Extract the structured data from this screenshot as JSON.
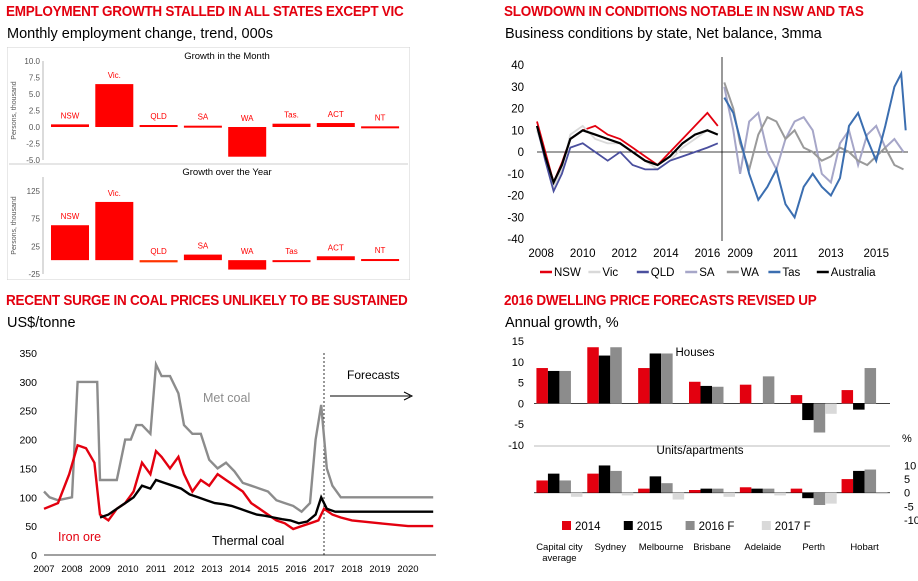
{
  "panels": {
    "p1": {
      "title": "EMPLOYMENT GROWTH STALLED IN ALL STATES EXCEPT VIC",
      "subtitle": "Monthly employment change, trend, 000s"
    },
    "p2": {
      "title": "SLOWDOWN IN CONDITIONS NOTABLE IN NSW AND TAS",
      "subtitle": "Business conditions by state, Net balance, 3mma"
    },
    "p3": {
      "title": "RECENT SURGE IN COAL PRICES UNLIKELY TO BE SUSTAINED",
      "subtitle": "US$/tonne"
    },
    "p4": {
      "title": "2016 DWELLING PRICE FORECASTS REVISED UP",
      "subtitle": "Annual growth, %"
    }
  },
  "chart_data": [
    {
      "id": "employment",
      "type": "bar",
      "color": "#ff0000",
      "categories": [
        "NSW",
        "Vic.",
        "QLD",
        "SA",
        "WA",
        "Tas.",
        "ACT",
        "NT"
      ],
      "month": {
        "title": "Growth in the Month",
        "ylabel": "Persons, thousand",
        "ylim": [
          -5,
          10
        ],
        "yticks": [
          10.0,
          7.5,
          5.0,
          2.5,
          0.0,
          -2.5,
          -5.0
        ],
        "values": [
          0.4,
          6.5,
          0.3,
          0.2,
          -4.5,
          0.5,
          0.6,
          0.1
        ]
      },
      "year": {
        "title": "Growth over the Year",
        "ylabel": "Persons, thousand",
        "ylim": [
          -25,
          150
        ],
        "yticks": [
          125,
          75,
          25,
          -25
        ],
        "categories": [
          "NSW",
          "Vic.",
          "QLD",
          "SA",
          "WA",
          "Tas",
          "ACT",
          "NT"
        ],
        "values": [
          63,
          105,
          -4,
          10,
          -17,
          -3,
          7,
          2
        ]
      }
    },
    {
      "id": "business_conditions",
      "type": "line",
      "ylim": [
        -40,
        40
      ],
      "yticks": [
        40,
        30,
        20,
        10,
        0,
        -10,
        -20,
        -30,
        -40
      ],
      "left_xticks": [
        "2008",
        "2010",
        "2012",
        "2014",
        "2016"
      ],
      "right_xticks": [
        "2009",
        "2011",
        "2013",
        "2015"
      ],
      "legend": [
        {
          "name": "NSW",
          "color": "#e3000f"
        },
        {
          "name": "Vic",
          "color": "#d9d9d9"
        },
        {
          "name": "QLD",
          "color": "#4a4f9e"
        },
        {
          "name": "SA",
          "color": "#a6a6c8"
        },
        {
          "name": "WA",
          "color": "#9a9a9a"
        },
        {
          "name": "Tas",
          "color": "#3b6eb0"
        },
        {
          "name": "Australia",
          "color": "#000000"
        }
      ],
      "left_series": [
        {
          "name": "NSW",
          "x": [
            2007.8,
            2008.2,
            2008.6,
            2009.0,
            2009.4,
            2010.0,
            2010.6,
            2011.2,
            2011.8,
            2012.4,
            2013.0,
            2013.6,
            2014.2,
            2014.8,
            2015.4,
            2016.0,
            2016.5
          ],
          "values": [
            14,
            0,
            -14,
            -5,
            6,
            10,
            12,
            8,
            6,
            2,
            -2,
            -6,
            0,
            6,
            12,
            18,
            12
          ]
        },
        {
          "name": "Vic",
          "x": [
            2007.8,
            2008.2,
            2008.6,
            2009.0,
            2009.4,
            2010.0,
            2010.6,
            2011.2,
            2011.8,
            2012.4,
            2013.0,
            2013.6,
            2014.2,
            2014.8,
            2015.4,
            2016.0,
            2016.5
          ],
          "values": [
            10,
            -2,
            -16,
            -8,
            8,
            12,
            6,
            4,
            4,
            0,
            -4,
            -8,
            -4,
            2,
            6,
            10,
            8
          ]
        },
        {
          "name": "QLD",
          "x": [
            2007.8,
            2008.2,
            2008.6,
            2009.0,
            2009.4,
            2010.0,
            2010.6,
            2011.2,
            2011.8,
            2012.4,
            2013.0,
            2013.6,
            2014.2,
            2014.8,
            2015.4,
            2016.0,
            2016.5
          ],
          "values": [
            12,
            -4,
            -18,
            -10,
            2,
            4,
            0,
            -4,
            0,
            -6,
            -8,
            -8,
            -4,
            -2,
            0,
            2,
            4
          ]
        },
        {
          "name": "Australia",
          "x": [
            2007.8,
            2008.2,
            2008.6,
            2009.0,
            2009.4,
            2010.0,
            2010.6,
            2011.2,
            2011.8,
            2012.4,
            2013.0,
            2013.6,
            2014.2,
            2014.8,
            2015.4,
            2016.0,
            2016.5
          ],
          "values": [
            12,
            -2,
            -14,
            -6,
            6,
            10,
            8,
            6,
            4,
            0,
            -4,
            -6,
            -2,
            4,
            8,
            10,
            8
          ]
        }
      ],
      "right_series": [
        {
          "name": "SA",
          "x": [
            2008.3,
            2008.7,
            2009.0,
            2009.4,
            2009.8,
            2010.2,
            2010.6,
            2011.0,
            2011.4,
            2011.8,
            2012.2,
            2012.6,
            2013.0,
            2013.4,
            2013.8,
            2014.2,
            2014.6,
            2015.0,
            2015.4,
            2015.8,
            2016.2
          ],
          "values": [
            30,
            10,
            -10,
            14,
            18,
            0,
            -8,
            6,
            14,
            16,
            10,
            -10,
            -14,
            4,
            10,
            -6,
            8,
            12,
            2,
            6,
            0
          ]
        },
        {
          "name": "WA",
          "x": [
            2008.3,
            2008.7,
            2009.0,
            2009.4,
            2009.8,
            2010.2,
            2010.6,
            2011.0,
            2011.4,
            2011.8,
            2012.2,
            2012.6,
            2013.0,
            2013.4,
            2013.8,
            2014.2,
            2014.6,
            2015.0,
            2015.4,
            2015.8,
            2016.2
          ],
          "values": [
            32,
            20,
            4,
            -8,
            8,
            16,
            14,
            6,
            10,
            2,
            0,
            -4,
            -2,
            2,
            0,
            -4,
            -6,
            -2,
            2,
            -6,
            -8
          ]
        },
        {
          "name": "Tas",
          "x": [
            2008.3,
            2008.7,
            2009.0,
            2009.4,
            2009.8,
            2010.2,
            2010.6,
            2011.0,
            2011.4,
            2011.8,
            2012.2,
            2012.6,
            2013.0,
            2013.4,
            2013.8,
            2014.2,
            2014.6,
            2015.0,
            2015.4,
            2015.8,
            2016.1,
            2016.3
          ],
          "values": [
            25,
            18,
            6,
            -10,
            -22,
            -16,
            -8,
            -24,
            -30,
            -16,
            -10,
            -16,
            -20,
            -12,
            12,
            18,
            6,
            -4,
            12,
            30,
            36,
            10
          ]
        }
      ]
    },
    {
      "id": "commodity_prices",
      "type": "line",
      "ylim": [
        0,
        350
      ],
      "yticks": [
        350,
        300,
        250,
        200,
        150,
        100,
        50,
        0
      ],
      "xticks": [
        "2007",
        "2008",
        "2009",
        "2010",
        "2011",
        "2012",
        "2013",
        "2014",
        "2015",
        "2016",
        "2017",
        "2018",
        "2019",
        "2020"
      ],
      "forecast_start": 2017,
      "forecast_label": "Forecasts",
      "series": [
        {
          "name": "Met coal",
          "color": "#8c8c8c",
          "x": [
            2007.0,
            2007.2,
            2007.5,
            2008.0,
            2008.2,
            2008.4,
            2008.6,
            2008.9,
            2009.0,
            2009.3,
            2009.6,
            2009.9,
            2010.1,
            2010.3,
            2010.5,
            2010.8,
            2011.0,
            2011.2,
            2011.5,
            2011.8,
            2012.0,
            2012.3,
            2012.6,
            2012.9,
            2013.2,
            2013.5,
            2013.8,
            2014.1,
            2014.4,
            2014.7,
            2015.0,
            2015.3,
            2015.6,
            2015.9,
            2016.2,
            2016.5,
            2016.7,
            2016.9,
            2017.1,
            2017.3,
            2017.6,
            2018.0,
            2019.0,
            2020.0,
            2020.9
          ],
          "values": [
            110,
            100,
            95,
            100,
            300,
            300,
            300,
            300,
            130,
            130,
            130,
            200,
            200,
            225,
            225,
            210,
            330,
            310,
            310,
            280,
            225,
            210,
            210,
            165,
            150,
            160,
            145,
            125,
            120,
            115,
            110,
            95,
            90,
            85,
            75,
            90,
            200,
            260,
            150,
            120,
            100,
            100,
            100,
            100,
            100
          ]
        },
        {
          "name": "Iron ore",
          "color": "#e3000f",
          "x": [
            2007.0,
            2007.5,
            2007.9,
            2008.2,
            2008.5,
            2008.8,
            2009.0,
            2009.3,
            2009.6,
            2009.9,
            2010.2,
            2010.5,
            2010.8,
            2011.0,
            2011.2,
            2011.5,
            2011.8,
            2012.0,
            2012.3,
            2012.6,
            2012.9,
            2013.2,
            2013.5,
            2013.8,
            2014.1,
            2014.4,
            2014.7,
            2015.0,
            2015.3,
            2015.6,
            2015.9,
            2016.2,
            2016.5,
            2016.8,
            2017.0,
            2017.3,
            2017.6,
            2018.0,
            2019.0,
            2020.0,
            2020.9
          ],
          "values": [
            80,
            90,
            140,
            190,
            185,
            160,
            70,
            60,
            80,
            90,
            110,
            160,
            140,
            180,
            170,
            150,
            170,
            140,
            110,
            130,
            120,
            140,
            130,
            120,
            110,
            90,
            80,
            70,
            60,
            55,
            45,
            50,
            55,
            60,
            80,
            70,
            65,
            60,
            55,
            50,
            50
          ]
        },
        {
          "name": "Thermal coal",
          "color": "#000000",
          "x": [
            2009.0,
            2009.3,
            2009.6,
            2009.9,
            2010.2,
            2010.5,
            2010.8,
            2011.0,
            2011.3,
            2011.6,
            2011.9,
            2012.2,
            2012.5,
            2012.8,
            2013.1,
            2013.4,
            2013.7,
            2014.0,
            2014.3,
            2014.6,
            2014.9,
            2015.2,
            2015.5,
            2015.8,
            2016.1,
            2016.4,
            2016.7,
            2016.9,
            2017.1,
            2017.4,
            2017.8,
            2018.2,
            2019.0,
            2020.0,
            2020.9
          ],
          "values": [
            65,
            70,
            80,
            90,
            100,
            120,
            115,
            130,
            125,
            120,
            115,
            105,
            100,
            95,
            90,
            88,
            85,
            80,
            75,
            70,
            68,
            65,
            62,
            60,
            55,
            58,
            70,
            100,
            80,
            75,
            75,
            75,
            75,
            75,
            75
          ]
        }
      ],
      "labels": [
        "Met coal",
        "Iron ore",
        "Thermal coal"
      ]
    },
    {
      "id": "dwelling_prices",
      "type": "bar",
      "categories": [
        "Capital city average",
        "Sydney",
        "Melbourne",
        "Brisbane",
        "Adelaide",
        "Perth",
        "Hobart"
      ],
      "legend": [
        {
          "name": "2014",
          "color": "#e3000f"
        },
        {
          "name": "2015",
          "color": "#000000"
        },
        {
          "name": "2016 F",
          "color": "#8c8c8c"
        },
        {
          "name": "2017 F",
          "color": "#d9d9d9"
        }
      ],
      "houses": {
        "label": "Houses",
        "ylim": [
          -10,
          15
        ],
        "yticks": [
          15,
          10,
          5,
          0,
          -5,
          -10
        ],
        "series": [
          {
            "name": "2014",
            "values": [
              8.5,
              13.5,
              8.5,
              5.2,
              4.5,
              2.0,
              3.2
            ]
          },
          {
            "name": "2015",
            "values": [
              7.8,
              11.5,
              12.0,
              4.2,
              0.0,
              -4.0,
              -1.5
            ]
          },
          {
            "name": "2016 F",
            "values": [
              7.8,
              13.5,
              12.0,
              4.0,
              6.5,
              -7.0,
              8.5
            ]
          },
          {
            "name": "2017 F",
            "values": [
              0.0,
              0.0,
              0.0,
              0.0,
              0.0,
              -2.5,
              0.0
            ]
          }
        ]
      },
      "units": {
        "label": "Units/apartments",
        "unit": "%",
        "ylim": [
          -10,
          12
        ],
        "yticks": [
          10,
          5,
          0,
          -5,
          -10
        ],
        "series": [
          {
            "name": "2014",
            "values": [
              4.5,
              7.0,
              1.5,
              1.0,
              2.0,
              1.5,
              5.0
            ]
          },
          {
            "name": "2015",
            "values": [
              7.0,
              10.0,
              6.0,
              1.5,
              1.5,
              -2.0,
              8.0
            ]
          },
          {
            "name": "2016 F",
            "values": [
              4.5,
              8.0,
              3.5,
              1.5,
              1.5,
              -4.5,
              8.5
            ]
          },
          {
            "name": "2017 F",
            "values": [
              -1.5,
              -1.0,
              -2.5,
              -1.5,
              -1.0,
              -4.0,
              -0.5
            ]
          }
        ]
      }
    }
  ]
}
